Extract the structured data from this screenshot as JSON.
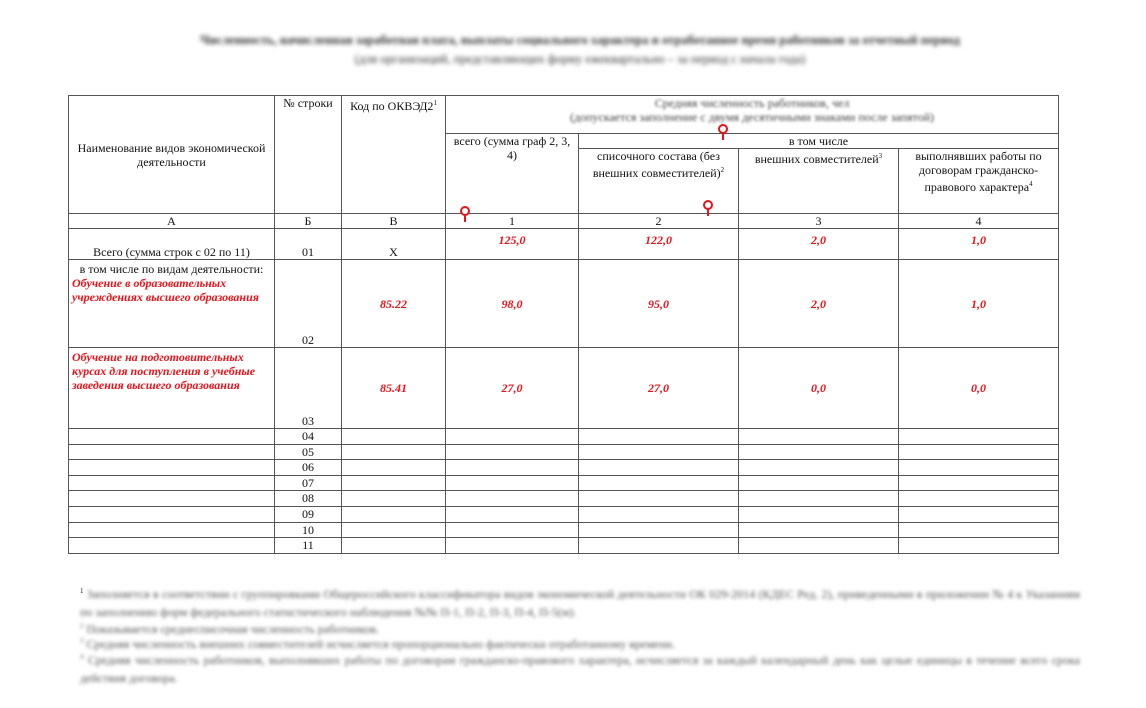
{
  "title": {
    "line1": "Численность, начисленная заработная плата, выплаты социального характера и отработанное время работников за отчетный период",
    "line2": "(для организаций, представляющих форму ежеквартально – за период с начала года)"
  },
  "header": {
    "col_a": "Наименование видов экономической деятельности",
    "col_b": "№ строки",
    "col_v": "Код по ОКВЭД2",
    "col_v_sup": "1",
    "group_title": "Средняя численность работников, чел",
    "group_note": "(допускается заполнение с двумя десятичными знаками после запятой)",
    "col_1": "всего (сумма граф 2, 3, 4)",
    "including": "в том числе",
    "col_2": "списочного состава (без внешних совместителей)",
    "col_2_sup": "2",
    "col_3": "внешних совместителей",
    "col_3_sup": "3",
    "col_4": "выполнявших работы по договорам гражданско-правового характера",
    "col_4_sup": "4",
    "letters": [
      "А",
      "Б",
      "В",
      "1",
      "2",
      "3",
      "4"
    ]
  },
  "rows": [
    {
      "name": "Всего (сумма строк с 02 по 11)",
      "num": "01",
      "code": "Х",
      "c1": "125,0",
      "c2": "122,0",
      "c3": "2,0",
      "c4": "1,0"
    },
    {
      "prefix": "в том числе по видам деятельности:",
      "name": "Обучение в образовательных учреждениях высшего образования",
      "num": "02",
      "code": "85.22",
      "c1": "98,0",
      "c2": "95,0",
      "c3": "2,0",
      "c4": "1,0"
    },
    {
      "name": "Обучение на подготовительных курсах для поступления в учебные заведения высшего образования",
      "num": "03",
      "code": "85.41",
      "c1": "27,0",
      "c2": "27,0",
      "c3": "0,0",
      "c4": "0,0"
    }
  ],
  "empty_rows": [
    "04",
    "05",
    "06",
    "07",
    "08",
    "09",
    "10",
    "11"
  ],
  "footnotes": [
    {
      "sup": "1",
      "text": "Заполняется в соответствии с группировками Общероссийского классификатора видов экономической деятельности ОК 029-2014 (КДЕС Ред. 2), приведенными в приложении № 4 к Указаниям по заполнению форм федерального статистического наблюдения №№ П-1, П-2, П-3, П-4, П-5(м)."
    },
    {
      "sup": "2",
      "text": "Показывается среднесписочная численность работников."
    },
    {
      "sup": "3",
      "text": "Средняя численность внешних совместителей исчисляется пропорционально фактически отработанному времени."
    },
    {
      "sup": "4",
      "text": "Средняя численность работников, выполнявших работы по договорам гражданско-правового характера, исчисляется за каждый календарный день как целые единицы в течение всего срока действия договора."
    }
  ],
  "colors": {
    "accent_red": "#e8141b"
  }
}
